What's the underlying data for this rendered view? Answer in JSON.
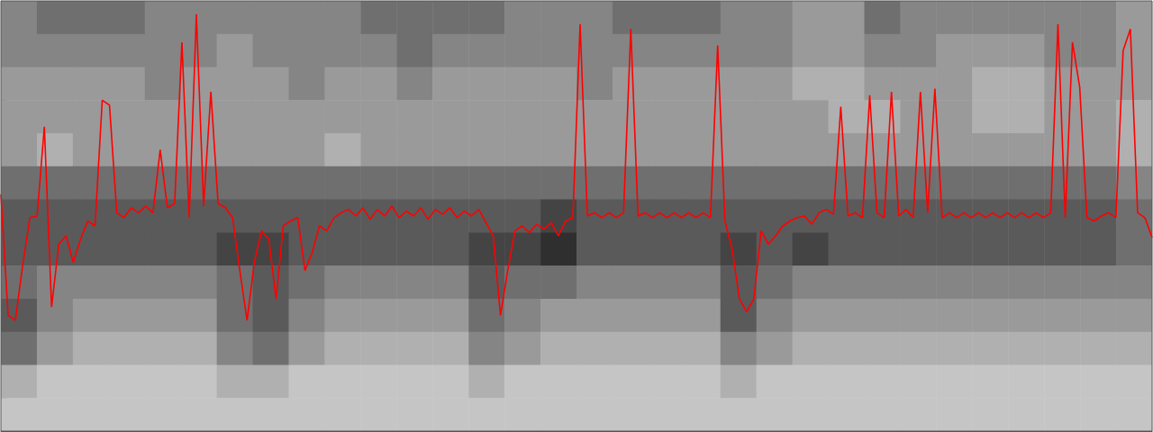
{
  "chart_data": {
    "type": "line",
    "annotation": "3",
    "x": [
      0,
      1,
      2,
      3,
      4,
      5,
      6,
      7,
      8,
      9,
      10,
      11,
      12,
      13,
      14,
      15,
      16,
      17,
      18,
      19,
      20,
      21,
      22,
      23,
      24,
      25,
      26,
      27,
      28,
      29,
      30,
      31,
      32,
      33,
      34,
      35,
      36,
      37,
      38,
      39,
      40,
      41,
      42,
      43,
      44,
      45,
      46,
      47,
      48,
      49,
      50,
      51,
      52,
      53,
      54,
      55,
      56,
      57,
      58,
      59,
      60,
      61,
      62,
      63,
      64,
      65,
      66,
      67,
      68,
      69,
      70,
      71,
      72,
      73,
      74,
      75,
      76,
      77,
      78,
      79,
      80,
      81,
      82,
      83,
      84,
      85,
      86,
      87,
      88,
      89,
      90,
      91,
      92,
      93,
      94,
      95,
      96,
      97,
      98,
      99,
      100,
      101,
      102,
      103,
      104,
      105,
      106,
      107,
      108,
      109,
      110,
      111,
      112,
      113,
      114,
      115,
      116,
      117,
      118,
      119,
      120,
      121,
      122,
      123,
      124,
      125,
      126,
      127,
      128,
      129,
      130,
      131,
      132,
      133,
      134,
      135,
      136,
      137,
      138,
      139,
      140,
      141,
      142,
      143,
      144,
      145,
      146,
      147,
      148,
      149,
      150,
      151,
      152,
      153,
      154,
      155,
      156,
      157,
      158,
      159
    ],
    "series": [
      {
        "color": "#ff0000",
        "values": [
          14.3,
          7.0,
          6.7,
          10.0,
          12.9,
          13.0,
          18.4,
          7.5,
          11.3,
          11.8,
          10.2,
          11.6,
          12.7,
          12.4,
          20.0,
          19.7,
          13.2,
          12.9,
          13.5,
          13.2,
          13.6,
          13.2,
          17.0,
          13.5,
          13.75,
          23.5,
          12.9,
          25.2,
          13.6,
          20.5,
          13.75,
          13.5,
          12.9,
          9.7,
          6.7,
          10.2,
          12.1,
          11.6,
          8.0,
          12.4,
          12.7,
          12.9,
          9.7,
          10.8,
          12.4,
          12.1,
          12.9,
          13.2,
          13.4,
          13.0,
          13.5,
          12.8,
          13.4,
          13.0,
          13.6,
          12.9,
          13.3,
          13.0,
          13.5,
          12.8,
          13.4,
          13.1,
          13.5,
          12.9,
          13.3,
          13.0,
          13.4,
          12.6,
          11.8,
          7.0,
          9.7,
          12.1,
          12.4,
          12.0,
          12.5,
          12.2,
          12.6,
          11.8,
          12.7,
          12.9,
          24.6,
          13.0,
          13.2,
          12.9,
          13.2,
          12.9,
          13.2,
          24.3,
          13.0,
          13.2,
          12.9,
          13.2,
          12.9,
          13.2,
          12.9,
          13.2,
          12.9,
          13.2,
          12.9,
          23.3,
          12.7,
          11.0,
          8.0,
          7.2,
          8.0,
          12.1,
          11.3,
          11.8,
          12.4,
          12.7,
          12.9,
          13.0,
          12.5,
          13.2,
          13.4,
          13.1,
          19.6,
          13.0,
          13.2,
          12.9,
          20.3,
          13.2,
          12.9,
          20.5,
          13.0,
          13.4,
          12.9,
          20.5,
          13.2,
          20.7,
          12.9,
          13.2,
          12.9,
          13.2,
          12.9,
          13.2,
          12.9,
          13.2,
          12.9,
          13.2,
          12.9,
          13.2,
          12.9,
          13.2,
          12.9,
          13.2,
          24.6,
          12.9,
          23.5,
          20.8,
          12.9,
          12.7,
          13.0,
          13.2,
          12.9,
          23.0,
          24.3,
          13.2,
          12.9,
          11.7
        ]
      }
    ],
    "xlim": [
      0,
      159
    ],
    "ylim": [
      0,
      26
    ],
    "xticks": [],
    "yticks": [
      2,
      3,
      4,
      5,
      6,
      7,
      8,
      9,
      10,
      11,
      12,
      13,
      14,
      15,
      16,
      17,
      18,
      19,
      20,
      21
    ],
    "tick_labels": false,
    "grid": false,
    "heatmap": {
      "range": [
        0,
        10
      ],
      "cells": [
        [
          5,
          6,
          6,
          6,
          5,
          5,
          5,
          5,
          5,
          5,
          6,
          6,
          6,
          6,
          5,
          5,
          5,
          6,
          6,
          6,
          5,
          5,
          4,
          4,
          6,
          5,
          5,
          5,
          5,
          5,
          5,
          4
        ],
        [
          5,
          5,
          5,
          5,
          5,
          5,
          4,
          5,
          5,
          5,
          5,
          6,
          5,
          5,
          5,
          5,
          5,
          5,
          5,
          5,
          5,
          5,
          4,
          4,
          5,
          5,
          4,
          4,
          4,
          5,
          5,
          4
        ],
        [
          4,
          4,
          4,
          4,
          5,
          4,
          4,
          4,
          5,
          4,
          4,
          5,
          4,
          4,
          4,
          4,
          5,
          4,
          4,
          4,
          4,
          4,
          3,
          3,
          4,
          4,
          4,
          3,
          3,
          4,
          4,
          4
        ],
        [
          4,
          4,
          4,
          4,
          4,
          4,
          4,
          4,
          4,
          4,
          4,
          4,
          4,
          4,
          4,
          4,
          4,
          4,
          4,
          4,
          4,
          4,
          4,
          3,
          3,
          4,
          4,
          3,
          3,
          4,
          4,
          3
        ],
        [
          4,
          3,
          4,
          4,
          4,
          4,
          4,
          4,
          4,
          3,
          4,
          4,
          4,
          4,
          4,
          4,
          4,
          4,
          4,
          4,
          4,
          4,
          4,
          4,
          4,
          4,
          4,
          4,
          4,
          4,
          4,
          3
        ],
        [
          6,
          6,
          6,
          6,
          6,
          6,
          6,
          6,
          6,
          6,
          6,
          6,
          6,
          6,
          6,
          6,
          6,
          6,
          6,
          6,
          6,
          6,
          6,
          6,
          6,
          6,
          6,
          6,
          6,
          6,
          6,
          5
        ],
        [
          7,
          7,
          7,
          7,
          7,
          7,
          7,
          7,
          7,
          7,
          7,
          7,
          7,
          7,
          7,
          8,
          7,
          7,
          7,
          7,
          7,
          7,
          7,
          7,
          7,
          7,
          7,
          7,
          7,
          7,
          7,
          6
        ],
        [
          7,
          7,
          7,
          7,
          7,
          7,
          8,
          8,
          7,
          7,
          7,
          7,
          7,
          8,
          8,
          9,
          7,
          7,
          7,
          7,
          8,
          7,
          8,
          7,
          7,
          7,
          7,
          7,
          7,
          7,
          7,
          6
        ],
        [
          6,
          5,
          5,
          5,
          5,
          5,
          6,
          7,
          6,
          5,
          5,
          5,
          5,
          7,
          6,
          6,
          5,
          5,
          5,
          5,
          7,
          6,
          5,
          5,
          5,
          5,
          5,
          5,
          5,
          5,
          5,
          5
        ],
        [
          7,
          5,
          4,
          4,
          4,
          4,
          6,
          7,
          5,
          4,
          4,
          4,
          4,
          6,
          5,
          4,
          4,
          4,
          4,
          4,
          7,
          5,
          4,
          4,
          4,
          4,
          4,
          4,
          4,
          4,
          4,
          4
        ],
        [
          6,
          4,
          3,
          3,
          3,
          3,
          5,
          6,
          4,
          3,
          3,
          3,
          3,
          5,
          4,
          3,
          3,
          3,
          3,
          3,
          5,
          4,
          3,
          3,
          3,
          3,
          3,
          3,
          3,
          3,
          3,
          3
        ],
        [
          3,
          2,
          2,
          2,
          2,
          2,
          3,
          3,
          2,
          2,
          2,
          2,
          2,
          3,
          2,
          2,
          2,
          2,
          2,
          2,
          3,
          2,
          2,
          2,
          2,
          2,
          2,
          2,
          2,
          2,
          2,
          2
        ],
        [
          2,
          2,
          2,
          2,
          2,
          2,
          2,
          2,
          2,
          2,
          2,
          2,
          2,
          2,
          2,
          2,
          2,
          2,
          2,
          2,
          2,
          2,
          2,
          2,
          2,
          2,
          2,
          2,
          2,
          2,
          2,
          2
        ]
      ]
    }
  }
}
